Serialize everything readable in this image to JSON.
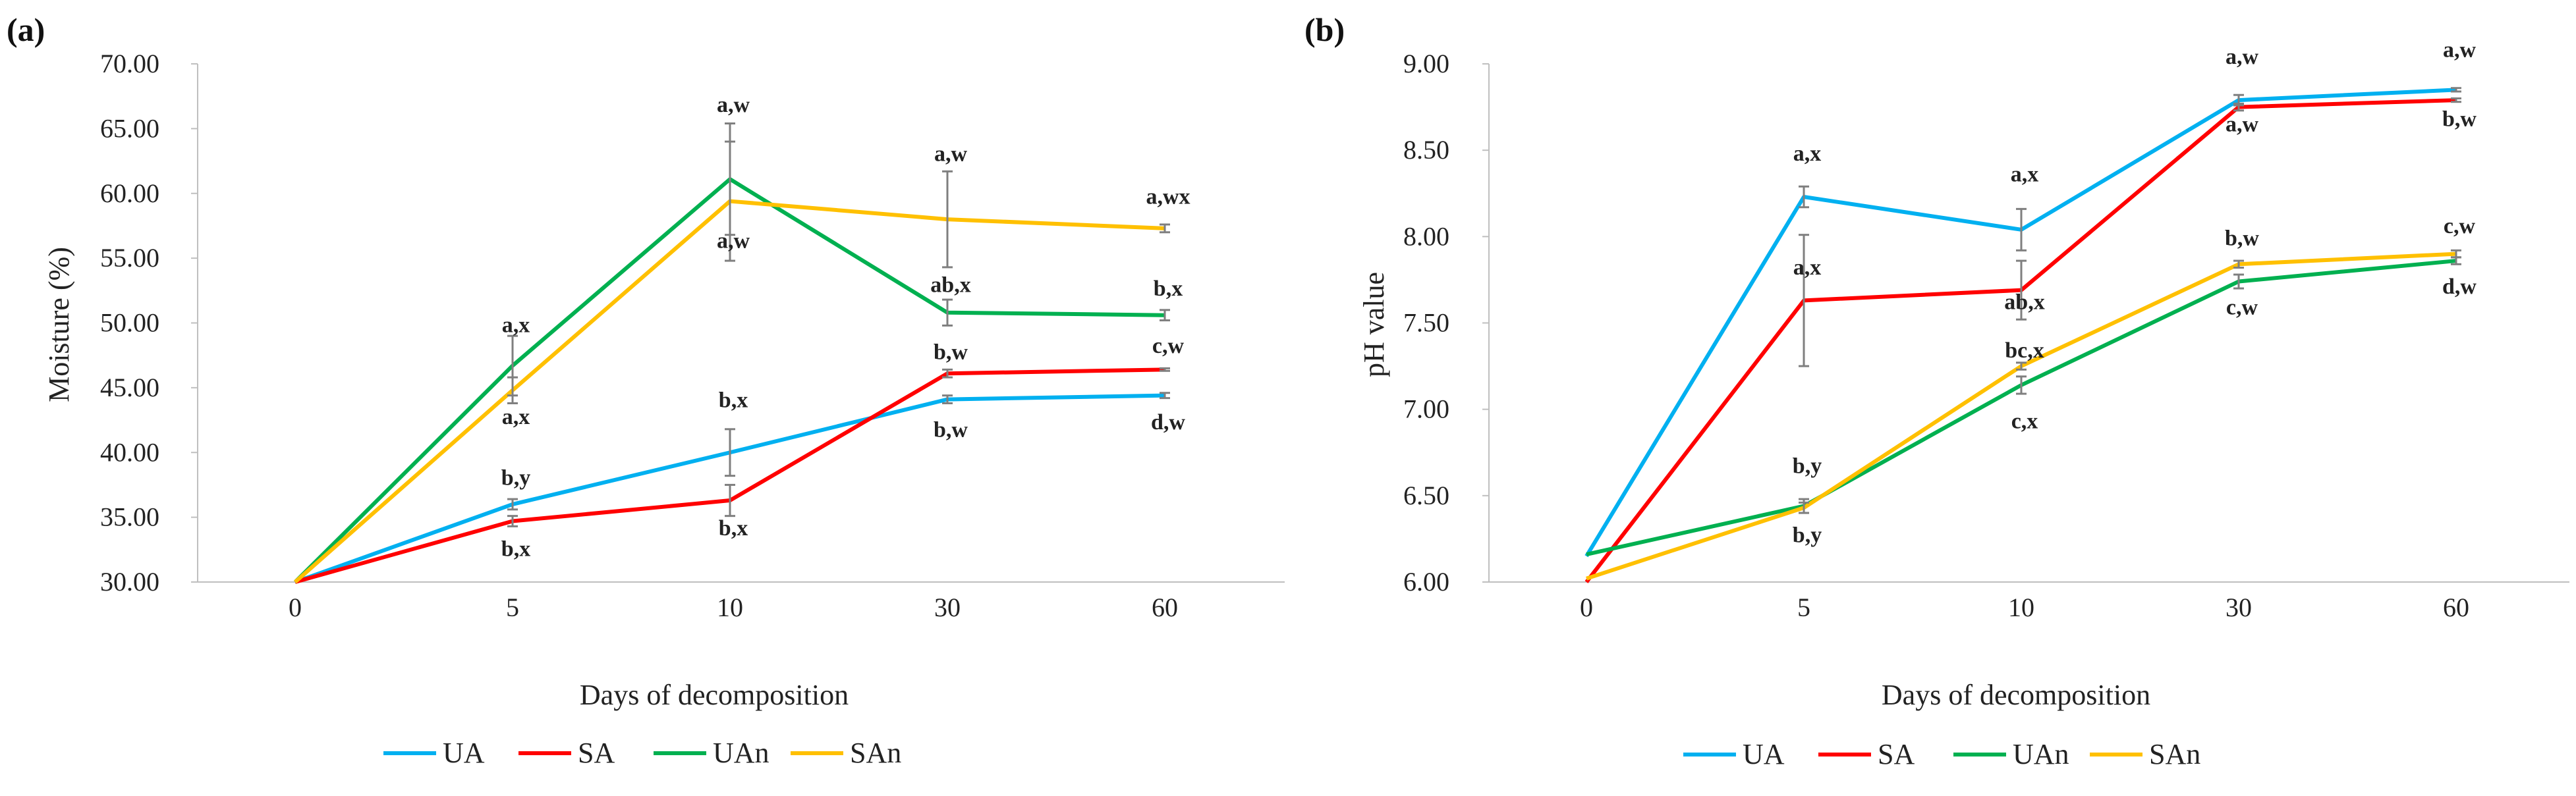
{
  "chart_data": [
    {
      "type": "line",
      "panel_label": "(a)",
      "xlabel": "Days of decomposition",
      "ylabel": "Moisture (%)",
      "categories": [
        "0",
        "5",
        "10",
        "30",
        "60"
      ],
      "ylim": [
        30,
        70
      ],
      "y_ticks": [
        "30.00",
        "35.00",
        "40.00",
        "45.00",
        "50.00",
        "55.00",
        "60.00",
        "65.00",
        "70.00"
      ],
      "series": [
        {
          "name": "UA",
          "color": "#00B0F0",
          "values": [
            30.0,
            36.0,
            40.0,
            44.1,
            44.4
          ],
          "errors": [
            0.0,
            0.4,
            1.8,
            0.3,
            0.2
          ]
        },
        {
          "name": "SA",
          "color": "#FF0000",
          "values": [
            30.0,
            34.7,
            36.3,
            46.1,
            46.4
          ],
          "errors": [
            0.0,
            0.4,
            1.2,
            0.3,
            0.1
          ]
        },
        {
          "name": "UAn",
          "color": "#00B050",
          "values": [
            30.0,
            46.7,
            61.1,
            50.8,
            50.6
          ],
          "errors": [
            0.0,
            2.3,
            4.3,
            1.0,
            0.4
          ]
        },
        {
          "name": "SAn",
          "color": "#FFC000",
          "values": [
            30.0,
            44.8,
            59.4,
            58.0,
            57.3
          ],
          "errors": [
            0.0,
            1.0,
            4.6,
            3.7,
            0.3
          ]
        }
      ],
      "annotations": [
        {
          "text": "a,x",
          "category": "5",
          "value": 49.3
        },
        {
          "text": "a,x",
          "category": "5",
          "value": 42.2
        },
        {
          "text": "b,y",
          "category": "5",
          "value": 37.5
        },
        {
          "text": "b,x",
          "category": "5",
          "value": 32.0
        },
        {
          "text": "a,w",
          "category": "10",
          "value": 66.3
        },
        {
          "text": "a,w",
          "category": "10",
          "value": 55.8
        },
        {
          "text": "b,x",
          "category": "10",
          "value": 43.5
        },
        {
          "text": "b,x",
          "category": "10",
          "value": 33.6
        },
        {
          "text": "a,w",
          "category": "30",
          "value": 62.5
        },
        {
          "text": "ab,x",
          "category": "30",
          "value": 52.4
        },
        {
          "text": "b,w",
          "category": "30",
          "value": 47.2
        },
        {
          "text": "b,w",
          "category": "30",
          "value": 41.2
        },
        {
          "text": "a,wx",
          "category": "60",
          "value": 59.2
        },
        {
          "text": "b,x",
          "category": "60",
          "value": 52.1
        },
        {
          "text": "c,w",
          "category": "60",
          "value": 47.7
        },
        {
          "text": "d,w",
          "category": "60",
          "value": 41.8
        }
      ]
    },
    {
      "type": "line",
      "panel_label": "(b)",
      "xlabel": "Days of decomposition",
      "ylabel": "pH value",
      "categories": [
        "0",
        "5",
        "10",
        "30",
        "60"
      ],
      "ylim": [
        6,
        9
      ],
      "y_ticks": [
        "6.00",
        "6.50",
        "7.00",
        "7.50",
        "8.00",
        "8.50",
        "9.00"
      ],
      "series": [
        {
          "name": "UA",
          "color": "#00B0F0",
          "values": [
            6.15,
            8.23,
            8.04,
            8.79,
            8.85
          ],
          "errors": [
            0.0,
            0.06,
            0.12,
            0.03,
            0.01
          ]
        },
        {
          "name": "SA",
          "color": "#FF0000",
          "values": [
            6.0,
            7.63,
            7.69,
            8.75,
            8.79
          ],
          "errors": [
            0.0,
            0.38,
            0.17,
            0.02,
            0.01
          ]
        },
        {
          "name": "UAn",
          "color": "#00B050",
          "values": [
            6.16,
            6.44,
            7.14,
            7.74,
            7.86
          ],
          "errors": [
            0.0,
            0.04,
            0.05,
            0.04,
            0.02
          ]
        },
        {
          "name": "SAn",
          "color": "#FFC000",
          "values": [
            6.02,
            6.43,
            7.25,
            7.84,
            7.9
          ],
          "errors": [
            0.0,
            0.03,
            0.02,
            0.02,
            0.02
          ]
        }
      ],
      "annotations": [
        {
          "text": "a,x",
          "category": "5",
          "value": 8.44
        },
        {
          "text": "a,x",
          "category": "5",
          "value": 7.78
        },
        {
          "text": "b,y",
          "category": "5",
          "value": 6.63
        },
        {
          "text": "b,y",
          "category": "5",
          "value": 6.23
        },
        {
          "text": "a,x",
          "category": "10",
          "value": 8.32
        },
        {
          "text": "ab,x",
          "category": "10",
          "value": 7.58
        },
        {
          "text": "bc,x",
          "category": "10",
          "value": 7.3
        },
        {
          "text": "c,x",
          "category": "10",
          "value": 6.89
        },
        {
          "text": "a,w",
          "category": "30",
          "value": 9.0
        },
        {
          "text": "a,w",
          "category": "30",
          "value": 8.61
        },
        {
          "text": "b,w",
          "category": "30",
          "value": 7.95
        },
        {
          "text": "c,w",
          "category": "30",
          "value": 7.55
        },
        {
          "text": "a,w",
          "category": "60",
          "value": 9.04
        },
        {
          "text": "b,w",
          "category": "60",
          "value": 8.64
        },
        {
          "text": "c,w",
          "category": "60",
          "value": 8.02
        },
        {
          "text": "d,w",
          "category": "60",
          "value": 7.67
        }
      ]
    }
  ]
}
